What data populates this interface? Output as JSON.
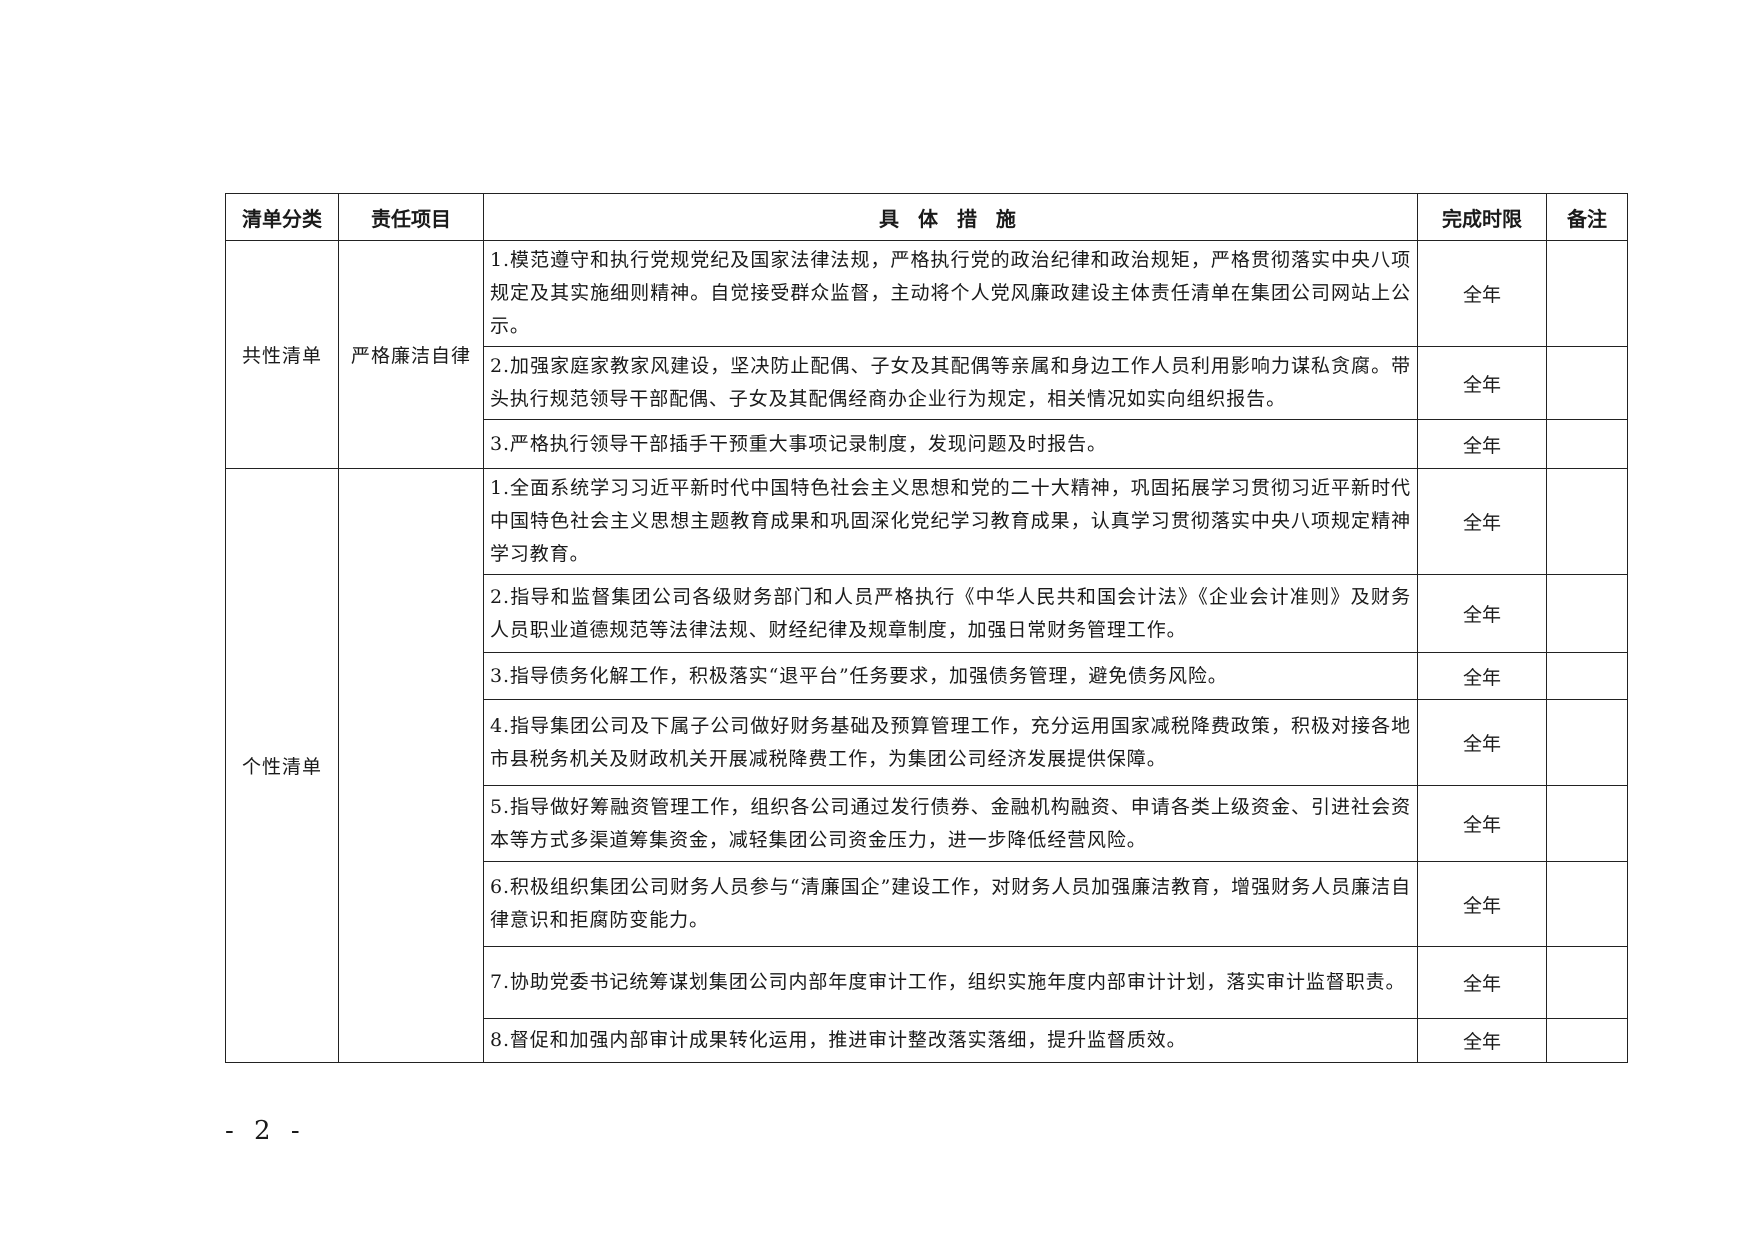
{
  "table": {
    "headers": [
      "清单分类",
      "责任项目",
      "具 体 措 施",
      "完成时限",
      "备注"
    ],
    "groups": [
      {
        "category": "共性清单",
        "item": "严格廉洁自律",
        "rows": [
          {
            "measure": "1.模范遵守和执行党规党纪及国家法律法规，严格执行党的政治纪律和政治规矩，严格贯彻落实中央八项规定及其实施细则精神。自觉接受群众监督，主动将个人党风廉政建设主体责任清单在集团公司网站上公示。",
            "deadline": "全年",
            "note": ""
          },
          {
            "measure": "2.加强家庭家教家风建设，坚决防止配偶、子女及其配偶等亲属和身边工作人员利用影响力谋私贪腐。带头执行规范领导干部配偶、子女及其配偶经商办企业行为规定，相关情况如实向组织报告。",
            "deadline": "全年",
            "note": ""
          },
          {
            "measure": "3.严格执行领导干部插手干预重大事项记录制度，发现问题及时报告。",
            "deadline": "全年",
            "note": ""
          }
        ]
      },
      {
        "category": "个性清单",
        "item": "",
        "rows": [
          {
            "measure": "1.全面系统学习习近平新时代中国特色社会主义思想和党的二十大精神，巩固拓展学习贯彻习近平新时代中国特色社会主义思想主题教育成果和巩固深化党纪学习教育成果，认真学习贯彻落实中央八项规定精神学习教育。",
            "deadline": "全年",
            "note": ""
          },
          {
            "measure": "2.指导和监督集团公司各级财务部门和人员严格执行《中华人民共和国会计法》《企业会计准则》及财务人员职业道德规范等法律法规、财经纪律及规章制度，加强日常财务管理工作。",
            "deadline": "全年",
            "note": ""
          },
          {
            "measure": "3.指导债务化解工作，积极落实“退平台”任务要求，加强债务管理，避免债务风险。",
            "deadline": "全年",
            "note": ""
          },
          {
            "measure": "4.指导集团公司及下属子公司做好财务基础及预算管理工作，充分运用国家减税降费政策，积极对接各地市县税务机关及财政机关开展减税降费工作，为集团公司经济发展提供保障。",
            "deadline": "全年",
            "note": ""
          },
          {
            "measure": "5.指导做好筹融资管理工作，组织各公司通过发行债券、金融机构融资、申请各类上级资金、引进社会资本等方式多渠道筹集资金，减轻集团公司资金压力，进一步降低经营风险。",
            "deadline": "全年",
            "note": ""
          },
          {
            "measure": "6.积极组织集团公司财务人员参与“清廉国企”建设工作，对财务人员加强廉洁教育，增强财务人员廉洁自律意识和拒腐防变能力。",
            "deadline": "全年",
            "note": ""
          },
          {
            "measure": "7.协助党委书记统筹谋划集团公司内部年度审计工作，组织实施年度内部审计计划，落实审计监督职责。",
            "deadline": "全年",
            "note": ""
          },
          {
            "measure": "8.督促和加强内部审计成果转化运用，推进审计整改落实落细，提升监督质效。",
            "deadline": "全年",
            "note": ""
          }
        ]
      }
    ]
  },
  "page_number": "- 2 -"
}
